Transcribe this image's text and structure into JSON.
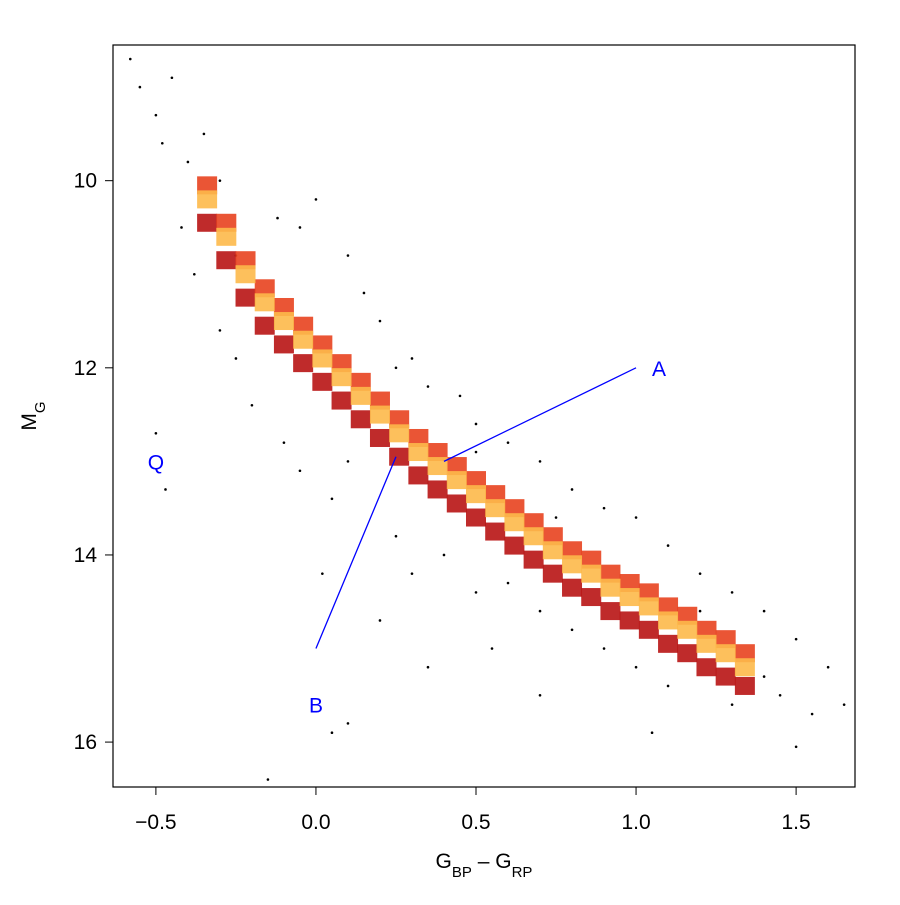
{
  "chart_data": {
    "type": "scatter",
    "x_label": [
      {
        "text": "G"
      },
      {
        "text": "BP",
        "sub": true
      },
      {
        "text": " – G"
      },
      {
        "text": "RP",
        "sub": true
      }
    ],
    "y_label": [
      {
        "text": "M"
      },
      {
        "text": "G",
        "sub": true
      }
    ],
    "annotations": [
      "A",
      "B",
      "Q"
    ],
    "annotation_color": "#0000ff",
    "xlim": [
      -0.634,
      1.684
    ],
    "ylim": [
      16.48,
      8.55
    ],
    "xticks": [
      {
        "value": -0.5,
        "label": "−0.5"
      },
      {
        "value": 0,
        "label": "0.0"
      },
      {
        "value": 0.5,
        "label": "0.5"
      },
      {
        "value": 1,
        "label": "1.0"
      },
      {
        "value": 1.5,
        "label": "1.5"
      }
    ],
    "yticks": [
      10,
      12,
      14,
      16
    ],
    "series": [
      {
        "color": "#000000",
        "marker": "dot",
        "x": [
          -0.58,
          -0.55,
          -0.5,
          -0.48,
          -0.45,
          -0.4,
          -0.35,
          -0.42,
          -0.38,
          -0.3,
          -0.25,
          -0.5,
          -0.47,
          -0.2,
          -0.1,
          -0.05,
          0.05,
          0.1,
          0.02,
          0.05,
          0.1,
          -0.15,
          -0.05,
          0.0,
          0.1,
          0.15,
          0.2,
          0.3,
          0.35,
          0.45,
          0.5,
          0.6,
          0.7,
          0.8,
          0.9,
          1.0,
          1.1,
          1.2,
          1.3,
          1.4,
          1.5,
          1.6,
          1.65,
          1.55,
          1.45,
          1.4,
          0.25,
          0.3,
          0.4,
          0.5,
          0.6,
          0.7,
          0.8,
          0.9,
          1.0,
          1.1,
          1.3,
          0.55,
          0.7,
          1.05,
          1.5,
          0.2,
          0.35,
          -0.3,
          -0.25,
          -0.12,
          0.25,
          0.5,
          0.75,
          1.2
        ],
        "values": [
          8.7,
          9.0,
          9.3,
          9.6,
          8.9,
          9.8,
          9.5,
          10.5,
          11.0,
          11.6,
          11.9,
          12.7,
          13.3,
          12.4,
          12.8,
          13.1,
          13.4,
          13.0,
          14.2,
          15.9,
          15.8,
          16.4,
          10.5,
          10.2,
          10.8,
          11.2,
          11.5,
          11.9,
          12.2,
          12.3,
          12.6,
          12.8,
          13.0,
          13.3,
          13.5,
          13.6,
          13.9,
          14.2,
          14.4,
          14.6,
          14.9,
          15.2,
          15.6,
          15.7,
          15.5,
          15.3,
          13.8,
          14.2,
          14.0,
          14.4,
          14.3,
          14.6,
          14.8,
          15.0,
          15.2,
          15.4,
          15.6,
          15.0,
          15.5,
          15.9,
          16.05,
          14.7,
          15.2,
          10.0,
          10.8,
          10.4,
          12.0,
          12.9,
          13.6,
          14.6
        ]
      },
      {
        "color": "#b81414",
        "marker": "cell",
        "x": [
          -0.34,
          -0.28,
          -0.22,
          -0.16,
          -0.1,
          -0.04,
          0.02,
          0.08,
          0.14,
          0.2,
          0.26,
          0.32,
          0.38,
          0.44,
          0.5,
          0.56,
          0.62,
          0.68,
          0.74,
          0.8,
          0.86,
          0.92,
          0.98,
          1.04,
          1.1,
          1.16,
          1.22,
          1.28,
          1.34
        ],
        "values": [
          10.45,
          10.85,
          11.25,
          11.55,
          11.75,
          11.95,
          12.15,
          12.35,
          12.55,
          12.75,
          12.95,
          13.15,
          13.3,
          13.45,
          13.6,
          13.75,
          13.9,
          14.05,
          14.2,
          14.35,
          14.45,
          14.6,
          14.7,
          14.8,
          14.95,
          15.05,
          15.2,
          15.3,
          15.4
        ]
      },
      {
        "color": "#e8421f",
        "marker": "cell",
        "x": [
          -0.34,
          -0.28,
          -0.22,
          -0.16,
          -0.1,
          -0.04,
          0.02,
          0.08,
          0.14,
          0.2,
          0.26,
          0.32,
          0.38,
          0.44,
          0.5,
          0.56,
          0.62,
          0.68,
          0.74,
          0.8,
          0.86,
          0.92,
          0.98,
          1.04,
          1.1,
          1.16,
          1.22,
          1.28,
          1.34
        ],
        "values": [
          10.05,
          10.45,
          10.85,
          11.15,
          11.35,
          11.55,
          11.75,
          11.95,
          12.15,
          12.35,
          12.55,
          12.75,
          12.9,
          13.05,
          13.2,
          13.35,
          13.5,
          13.65,
          13.8,
          13.95,
          14.05,
          14.2,
          14.3,
          14.4,
          14.55,
          14.65,
          14.8,
          14.9,
          15.05
        ]
      },
      {
        "color": "#fdb94a",
        "marker": "cell",
        "x": [
          -0.34,
          -0.28,
          -0.22,
          -0.16,
          -0.1,
          -0.04,
          0.02,
          0.08,
          0.14,
          0.2,
          0.26,
          0.32,
          0.38,
          0.44,
          0.5,
          0.56,
          0.62,
          0.68,
          0.74,
          0.8,
          0.86,
          0.92,
          0.98,
          1.04,
          1.1,
          1.16,
          1.22,
          1.28,
          1.34
        ],
        "values": [
          10.2,
          10.6,
          11.0,
          11.3,
          11.5,
          11.7,
          11.9,
          12.1,
          12.3,
          12.5,
          12.7,
          12.9,
          13.05,
          13.2,
          13.35,
          13.5,
          13.65,
          13.8,
          13.95,
          14.1,
          14.2,
          14.35,
          14.45,
          14.55,
          14.7,
          14.8,
          14.95,
          15.05,
          15.2
        ]
      }
    ]
  }
}
